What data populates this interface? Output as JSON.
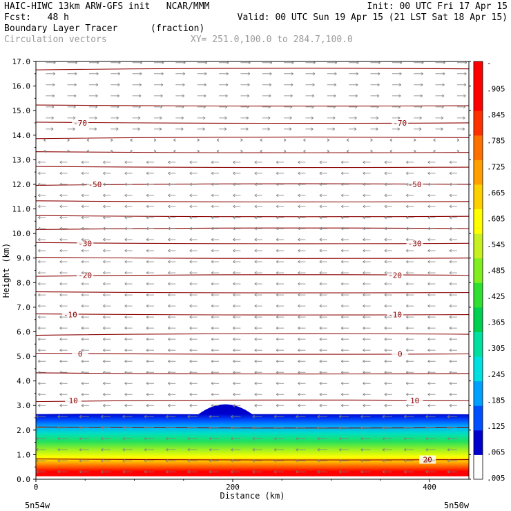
{
  "header": {
    "line1_left": "HAIC-HIWC 13km ARW-GFS init   NCAR/MMM",
    "line1_right": "Init: 00 UTC Fri 17 Apr 15",
    "line2_left": "Fcst:   48 h",
    "line2_right": "Valid: 00 UTC Sun 19 Apr 15 (21 LST Sat 18 Apr 15)",
    "line3_left": "Boundary Layer Tracer",
    "line3_mid": "(fraction)",
    "line4_left": "Circulation vectors",
    "line4_mid": "XY= 251.0,100.0 to 284.7,100.0"
  },
  "colors": {
    "contour": "#8b0000",
    "vector": "#7f7f7f",
    "colorbar": [
      "#ffffff",
      "#0000cd",
      "#0050ff",
      "#00a0ff",
      "#00e0e0",
      "#00e0a0",
      "#00d050",
      "#30e030",
      "#80ee20",
      "#c8f020",
      "#ffff00",
      "#ffd000",
      "#ffa000",
      "#ff7000",
      "#ff3000",
      "#ff0000",
      "#ff0000"
    ]
  },
  "chart_data": {
    "type": "heatmap",
    "title": "Boundary Layer Tracer",
    "units": "(fraction)",
    "xlabel": "Distance (km)",
    "ylabel": "Height (km)",
    "xlim": [
      0,
      440
    ],
    "ylim": [
      0.0,
      17.0
    ],
    "x_ticks": [
      {
        "value": 0,
        "label": "0"
      },
      {
        "value": 200,
        "label": "200"
      },
      {
        "value": 400,
        "label": "400"
      }
    ],
    "x_endpoint_labels": {
      "left": "5n54w",
      "right": "5n50w"
    },
    "y_ticks": [
      0.0,
      1.0,
      2.0,
      3.0,
      4.0,
      5.0,
      6.0,
      7.0,
      8.0,
      9.0,
      10.0,
      11.0,
      12.0,
      13.0,
      14.0,
      15.0,
      16.0,
      17.0
    ],
    "y_tick_labels": [
      "0.0",
      "1.0",
      "2.0",
      "3.0",
      "4.0",
      "5.0",
      "6.0",
      "7.0",
      "8.0",
      "9.0",
      "10.0",
      "11.0",
      "12.0",
      "13.0",
      "14.0",
      "15.0",
      "16.0",
      "17.0"
    ],
    "colorbar": {
      "labels": [
        "-",
        ".905",
        ".845",
        ".785",
        ".725",
        ".665",
        ".605",
        ".545",
        ".485",
        ".425",
        ".365",
        ".305",
        ".245",
        ".185",
        ".125",
        ".065",
        ".005"
      ],
      "levels": [
        0.005,
        0.065,
        0.125,
        0.185,
        0.245,
        0.305,
        0.365,
        0.425,
        0.485,
        0.545,
        0.605,
        0.665,
        0.725,
        0.785,
        0.845,
        0.905
      ]
    },
    "tracer_layer": {
      "top_height_km": [
        2.65,
        2.66,
        2.66,
        2.65,
        2.64,
        2.65,
        2.65,
        2.64,
        2.64,
        2.65,
        2.64
      ],
      "dome": {
        "x_start": 165,
        "x_end": 220,
        "peak_height_km": 3.05
      },
      "x": [
        0,
        44,
        88,
        132,
        176,
        220,
        264,
        308,
        352,
        396,
        440
      ]
    },
    "temperature_contours": {
      "units": "degC",
      "labelled": [
        {
          "label": "-70",
          "y_km": 14.5,
          "x_positions": [
            45,
            370
          ]
        },
        {
          "label": "-50",
          "y_km": 12.0,
          "x_positions": [
            60,
            385
          ]
        },
        {
          "label": "-30",
          "y_km": 9.6,
          "x_positions": [
            50,
            385
          ]
        },
        {
          "label": "-20",
          "y_km": 8.3,
          "x_positions": [
            50,
            365
          ]
        },
        {
          "label": "-10",
          "y_km": 6.7,
          "x_positions": [
            35,
            365
          ]
        },
        {
          "label": "0",
          "y_km": 5.1,
          "x_positions": [
            45,
            370
          ]
        },
        {
          "label": "10",
          "y_km": 3.2,
          "x_positions": [
            38,
            385
          ]
        },
        {
          "label": "20",
          "y_km": 0.8,
          "x_positions": [
            398
          ]
        }
      ],
      "line_heights_km": [
        16.7,
        15.2,
        14.5,
        13.9,
        13.3,
        12.7,
        12.0,
        11.3,
        10.7,
        10.2,
        9.6,
        9.0,
        8.3,
        7.6,
        6.7,
        5.9,
        5.1,
        4.3,
        3.2,
        2.1,
        0.8
      ]
    },
    "vector_field": {
      "upper_direction": "east",
      "lower_direction": "west",
      "reversal_height_km": 13.5
    }
  }
}
